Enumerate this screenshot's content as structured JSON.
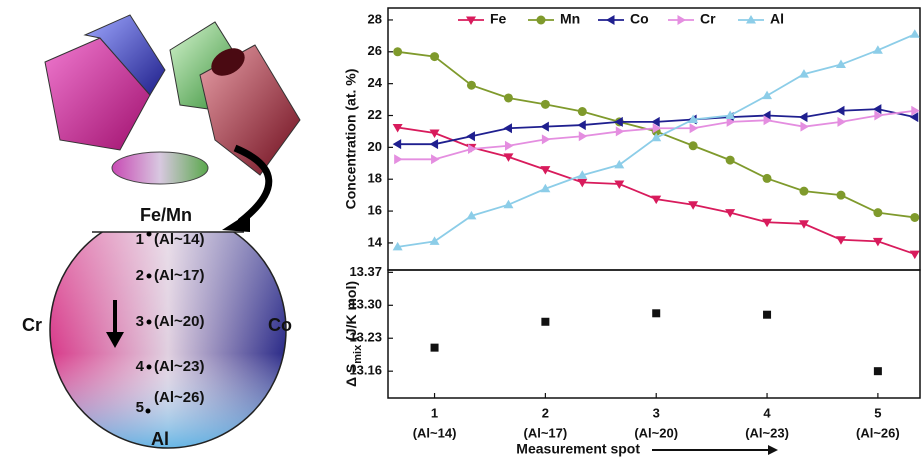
{
  "schematic": {
    "top_label": "Fe/Mn",
    "left_label": "Cr",
    "right_label": "Co",
    "bottom_label": "Al",
    "spots": [
      {
        "number": "1",
        "label": "(Al~14)"
      },
      {
        "number": "2",
        "label": "(Al~17)"
      },
      {
        "number": "3",
        "label": "(Al~20)"
      },
      {
        "number": "4",
        "label": "(Al~23)"
      },
      {
        "number": "5",
        "label": "(Al~26)"
      }
    ]
  },
  "chart_data": [
    {
      "type": "line",
      "ylabel": "Concentration (at. %)",
      "x": [
        0.667,
        1,
        1.333,
        1.667,
        2,
        2.333,
        2.667,
        3,
        3.333,
        3.667,
        4,
        4.333,
        4.667,
        5,
        5.333
      ],
      "xlim": [
        0.58,
        5.38
      ],
      "ylim": [
        12.3,
        28.75
      ],
      "yticks": [
        14,
        16,
        18,
        20,
        22,
        24,
        26,
        28
      ],
      "series": [
        {
          "name": "Fe",
          "color": "#d81b5c",
          "marker": "triangle-down",
          "values": [
            21.25,
            20.9,
            20.0,
            19.4,
            18.6,
            17.8,
            17.7,
            16.75,
            16.4,
            15.9,
            15.3,
            15.2,
            14.2,
            14.1,
            13.3
          ]
        },
        {
          "name": "Mn",
          "color": "#7f9a2c",
          "marker": "circle",
          "values": [
            26.0,
            25.7,
            23.9,
            23.1,
            22.7,
            22.25,
            21.6,
            21.0,
            20.1,
            19.2,
            18.05,
            17.25,
            17.0,
            15.9,
            15.6
          ]
        },
        {
          "name": "Co",
          "color": "#1f1f8f",
          "marker": "triangle-left",
          "values": [
            20.2,
            20.2,
            20.7,
            21.2,
            21.3,
            21.4,
            21.6,
            21.6,
            21.75,
            21.9,
            22.0,
            21.9,
            22.3,
            22.4,
            21.9
          ]
        },
        {
          "name": "Cr",
          "color": "#e48ee0",
          "marker": "triangle-right",
          "values": [
            19.25,
            19.25,
            19.9,
            20.1,
            20.5,
            20.7,
            21.0,
            21.2,
            21.2,
            21.6,
            21.7,
            21.3,
            21.6,
            22.0,
            22.3
          ]
        },
        {
          "name": "Al",
          "color": "#8ccde8",
          "marker": "triangle-up",
          "values": [
            13.75,
            14.1,
            15.7,
            16.4,
            17.4,
            18.25,
            18.9,
            20.6,
            21.75,
            22.0,
            23.25,
            24.6,
            25.2,
            26.1,
            27.1
          ]
        }
      ]
    },
    {
      "type": "scatter",
      "ylabel": [
        "Δ S",
        "mix",
        " (J/K mol)"
      ],
      "xlabel": "Measurement spot",
      "x": [
        1,
        2,
        3,
        4,
        5
      ],
      "values": [
        13.21,
        13.265,
        13.283,
        13.28,
        13.16
      ],
      "color": "#111111",
      "xlim": [
        0.58,
        5.38
      ],
      "xticks": [
        1,
        2,
        3,
        4,
        5
      ],
      "xtick_sublabels": [
        "(Al~14)",
        "(Al~17)",
        "(Al~20)",
        "(Al~23)",
        "(Al~26)"
      ],
      "ylim": [
        13.103,
        13.375
      ],
      "yticks": [
        {
          "value": 13.16,
          "label": "13.16"
        },
        {
          "value": 13.23,
          "label": "13.23"
        },
        {
          "value": 13.3,
          "label": "13.30"
        },
        {
          "value": 13.37,
          "label": "13.37"
        }
      ]
    }
  ]
}
